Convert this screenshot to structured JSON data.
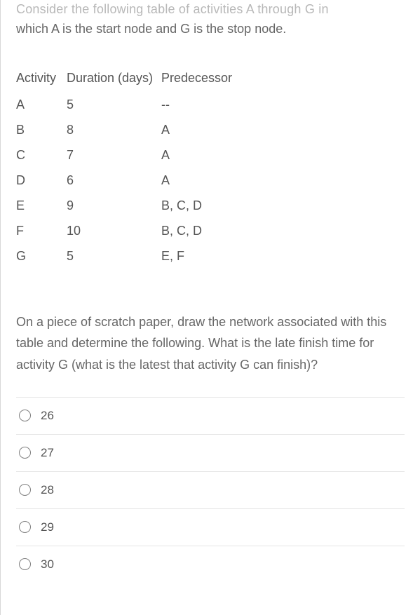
{
  "intro": {
    "line1_faded": "Consider the following table of activities A through G in",
    "line2": "which A is the start node and G is the stop node."
  },
  "table": {
    "headers": {
      "c1": "Activity",
      "c2": "Duration (days)",
      "c3": "Predecessor"
    },
    "rows": [
      {
        "activity": "A",
        "duration": "5",
        "predecessor": "--"
      },
      {
        "activity": "B",
        "duration": "8",
        "predecessor": "A"
      },
      {
        "activity": "C",
        "duration": "7",
        "predecessor": "A"
      },
      {
        "activity": "D",
        "duration": "6",
        "predecessor": "A"
      },
      {
        "activity": "E",
        "duration": "9",
        "predecessor": "B, C, D"
      },
      {
        "activity": "F",
        "duration": "10",
        "predecessor": "B, C, D"
      },
      {
        "activity": "G",
        "duration": "5",
        "predecessor": "E, F"
      }
    ]
  },
  "question": "On a piece of scratch paper, draw the network associated with this table and determine the following. What is the late finish time for activity G (what is the latest that activity G can finish)?",
  "options": [
    "26",
    "27",
    "28",
    "29",
    "30"
  ]
}
